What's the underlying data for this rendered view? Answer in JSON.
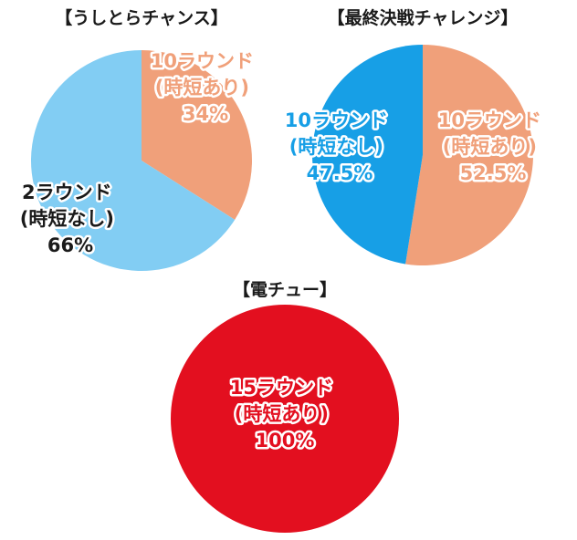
{
  "chart_data": [
    {
      "type": "pie",
      "title": "【うしとらチャンス】",
      "slices": [
        {
          "line1": "10ラウンド",
          "line2": "(時短あり)",
          "percent_label": "34%",
          "value": 34,
          "color": "#f0a07a",
          "text_color": "#f0a07a"
        },
        {
          "line1": "2ラウンド",
          "line2": "(時短なし)",
          "percent_label": "66%",
          "value": 66,
          "color": "#82cdf3",
          "text_color": "#1a1a1a"
        }
      ]
    },
    {
      "type": "pie",
      "title": "【最終決戦チャレンジ】",
      "slices": [
        {
          "line1": "10ラウンド",
          "line2": "(時短あり)",
          "percent_label": "52.5%",
          "value": 52.5,
          "color": "#f0a07a",
          "text_color": "#f0a07a"
        },
        {
          "line1": "10ラウンド",
          "line2": "(時短なし)",
          "percent_label": "47.5%",
          "value": 47.5,
          "color": "#179fe6",
          "text_color": "#179fe6"
        }
      ]
    },
    {
      "type": "pie",
      "title": "【電チュー】",
      "slices": [
        {
          "line1": "15ラウンド",
          "line2": "(時短あり)",
          "percent_label": "100%",
          "value": 100,
          "color": "#e30f1f",
          "text_color": "#e30f1f"
        }
      ]
    }
  ]
}
